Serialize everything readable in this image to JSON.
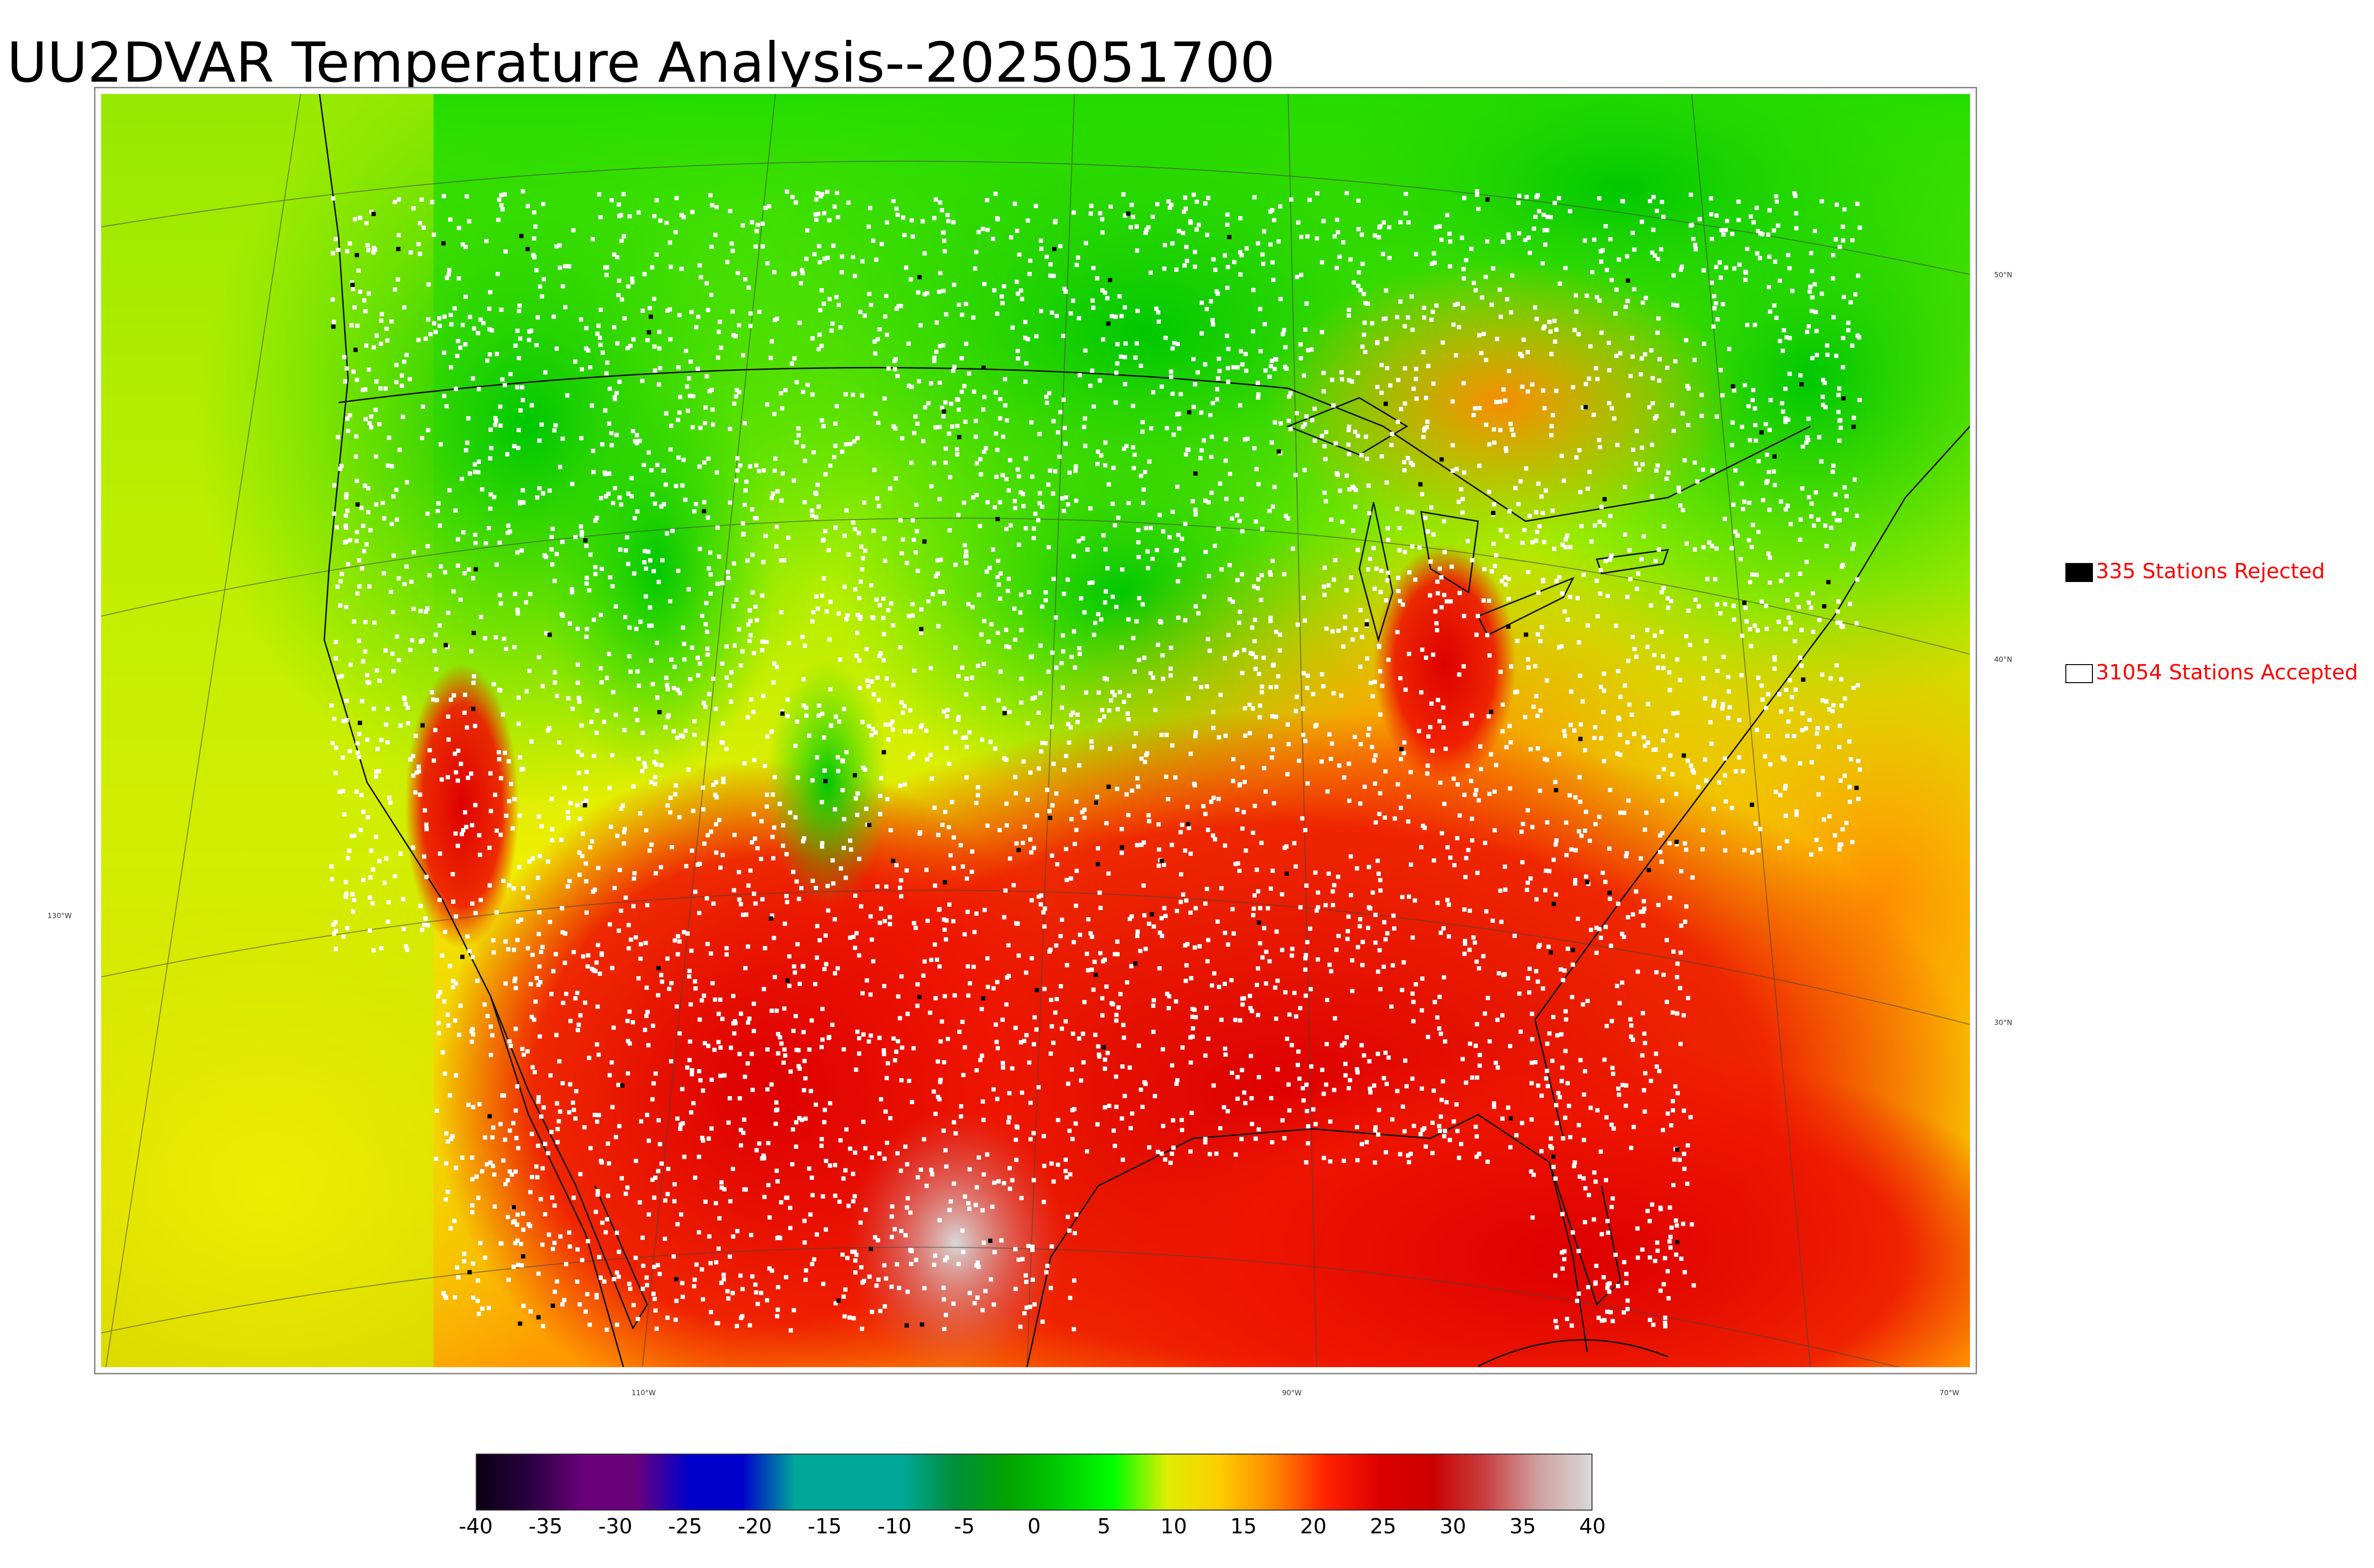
{
  "title": "UU2DVAR Temperature Analysis--2025051700",
  "legend": {
    "rejected": {
      "label": "335 Stations Rejected",
      "swatch_color": "#000000"
    },
    "accepted": {
      "label": "31054 Stations Accepted",
      "swatch_color": "#ffffff"
    }
  },
  "map": {
    "longitude_labels": [
      "130°W",
      "110°W",
      "90°W",
      "70°W"
    ],
    "latitude_labels": [
      "50°N",
      "40°N",
      "30°N"
    ],
    "field": "temperature",
    "palette": {
      "cold": "#00cc00",
      "cool": "#66ee00",
      "mild": "#ddee00",
      "warm": "#ffaa00",
      "hot": "#ee2200",
      "hottest": "#cc0000",
      "extreme": "#cccccc",
      "station_accepted": "#ffffff",
      "station_rejected": "#000000"
    }
  },
  "colorbar": {
    "ticks": [
      "-40",
      "-35",
      "-30",
      "-25",
      "-20",
      "-15",
      "-10",
      "-5",
      "0",
      "5",
      "10",
      "15",
      "20",
      "25",
      "30",
      "35",
      "40"
    ],
    "range": [
      -40,
      40
    ],
    "colors": [
      "#0a0014",
      "#2a0040",
      "#6a007a",
      "#6a007a",
      "#0000cc",
      "#0000cc",
      "#00a89a",
      "#00a89a",
      "#00a89a",
      "#008f3a",
      "#00a300",
      "#00cc00",
      "#00ff00",
      "#ddee00",
      "#ffcc00",
      "#ff8800",
      "#ff2200",
      "#dd0000",
      "#cc0000",
      "#c84040",
      "#d0a0a0",
      "#d8d8d8"
    ]
  }
}
